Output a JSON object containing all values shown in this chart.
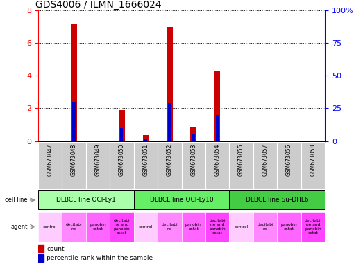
{
  "title": "GDS4006 / ILMN_1666024",
  "samples": [
    "GSM673047",
    "GSM673048",
    "GSM673049",
    "GSM673050",
    "GSM673051",
    "GSM673052",
    "GSM673053",
    "GSM673054",
    "GSM673055",
    "GSM673057",
    "GSM673056",
    "GSM673058"
  ],
  "count_values": [
    0,
    7.2,
    0,
    1.9,
    0.35,
    7.0,
    0.85,
    4.3,
    0,
    0,
    0,
    0
  ],
  "percentile_values": [
    0,
    2.4,
    0,
    0.8,
    0.13,
    2.3,
    0.42,
    1.6,
    0,
    0,
    0,
    0
  ],
  "bar_width": 0.25,
  "perc_bar_width": 0.12,
  "ylim_left": [
    0,
    8
  ],
  "ylim_right": [
    0,
    100
  ],
  "yticks_left": [
    0,
    2,
    4,
    6,
    8
  ],
  "yticks_right": [
    0,
    25,
    50,
    75,
    100
  ],
  "ytick_labels_right": [
    "0",
    "25",
    "50",
    "75",
    "100%"
  ],
  "bar_color_count": "#cc0000",
  "bar_color_percentile": "#0000cc",
  "cell_lines": [
    {
      "label": "DLBCL line OCI-Ly1",
      "start": 0,
      "end": 4,
      "color": "#aaffaa"
    },
    {
      "label": "DLBCL line OCI-Ly10",
      "start": 4,
      "end": 8,
      "color": "#66ee66"
    },
    {
      "label": "DLBCL line Su-DHL6",
      "start": 8,
      "end": 12,
      "color": "#44cc44"
    }
  ],
  "agent_labels": [
    "control",
    "decitabi\nne",
    "panobin\nostat",
    "decitabi\nne and\npanobin\nostat"
  ],
  "agent_bg_colors": [
    "#ffccff",
    "#ff88ff",
    "#ff66ff",
    "#ff44ff"
  ],
  "sample_bg_color": "#cccccc",
  "cell_line_border": "#000000",
  "legend_count_color": "#cc0000",
  "legend_perc_color": "#0000cc"
}
